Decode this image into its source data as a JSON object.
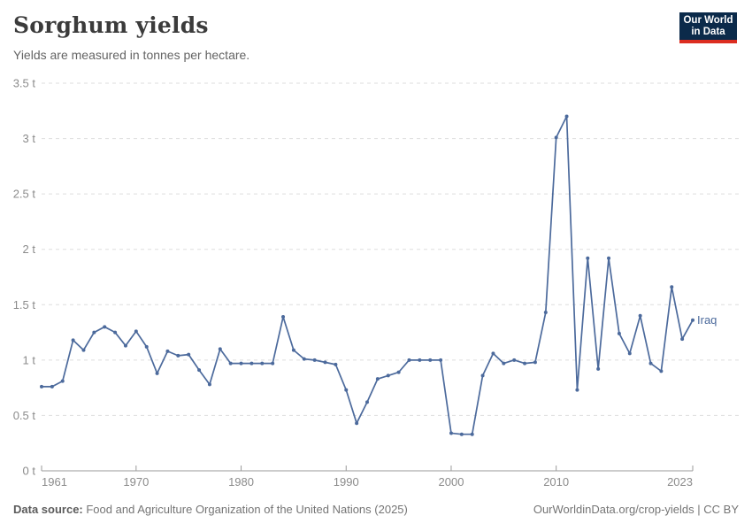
{
  "header": {
    "title": "Sorghum yields",
    "subtitle": "Yields are measured in tonnes per hectare.",
    "logo": {
      "line1": "Our World",
      "line2": "in Data"
    }
  },
  "footer": {
    "source_label": "Data source:",
    "source_text": " Food and Agriculture Organization of the United Nations (2025)",
    "credit_text": "OurWorldinData.org/crop-yields | CC BY"
  },
  "colors": {
    "series": "#4C6A9C",
    "grid": "#dedede",
    "axis": "#9a9a9a",
    "tick_text": "#8b8b8b",
    "title_text": "#3b3b3b",
    "logo_bg": "#0b2a4a",
    "logo_red": "#dc2d20"
  },
  "chart_data": {
    "type": "line",
    "title": "Sorghum yields",
    "subtitle": "Yields are measured in tonnes per hectare.",
    "unit": "tonnes per hectare",
    "xlim": [
      1961,
      2023
    ],
    "ylim": [
      0,
      3.5
    ],
    "grid": "horizontal-dashed",
    "legend_position": "end-of-line-label",
    "x_ticks": [
      1961,
      1970,
      1980,
      1990,
      2000,
      2010,
      2023
    ],
    "y_ticks": [
      {
        "value": 0,
        "label": "0 t"
      },
      {
        "value": 0.5,
        "label": "0.5 t"
      },
      {
        "value": 1,
        "label": "1 t"
      },
      {
        "value": 1.5,
        "label": "1.5 t"
      },
      {
        "value": 2,
        "label": "2 t"
      },
      {
        "value": 2.5,
        "label": "2.5 t"
      },
      {
        "value": 3,
        "label": "3 t"
      },
      {
        "value": 3.5,
        "label": "3.5 t"
      }
    ],
    "series": [
      {
        "name": "Iraq",
        "color": "#4C6A9C",
        "x": [
          1961,
          1962,
          1963,
          1964,
          1965,
          1966,
          1967,
          1968,
          1969,
          1970,
          1971,
          1972,
          1973,
          1974,
          1975,
          1976,
          1977,
          1978,
          1979,
          1980,
          1981,
          1982,
          1983,
          1984,
          1985,
          1986,
          1987,
          1988,
          1989,
          1990,
          1991,
          1992,
          1993,
          1994,
          1995,
          1996,
          1997,
          1998,
          1999,
          2000,
          2001,
          2002,
          2003,
          2004,
          2005,
          2006,
          2007,
          2008,
          2009,
          2010,
          2011,
          2012,
          2013,
          2014,
          2015,
          2016,
          2017,
          2018,
          2019,
          2020,
          2021,
          2022,
          2023
        ],
        "values": [
          0.76,
          0.76,
          0.81,
          1.18,
          1.09,
          1.25,
          1.3,
          1.25,
          1.13,
          1.26,
          1.12,
          0.88,
          1.08,
          1.04,
          1.05,
          0.91,
          0.78,
          1.1,
          0.97,
          0.97,
          0.97,
          0.97,
          0.97,
          1.39,
          1.09,
          1.01,
          1.0,
          0.98,
          0.96,
          0.73,
          0.43,
          0.62,
          0.83,
          0.86,
          0.89,
          1.0,
          1.0,
          1.0,
          1.0,
          0.34,
          0.33,
          0.33,
          0.86,
          1.06,
          0.97,
          1.0,
          0.97,
          0.98,
          1.43,
          3.01,
          3.2,
          0.73,
          1.92,
          0.92,
          1.92,
          1.24,
          1.06,
          1.4,
          0.97,
          0.9,
          1.66,
          1.19,
          1.36
        ]
      }
    ]
  }
}
